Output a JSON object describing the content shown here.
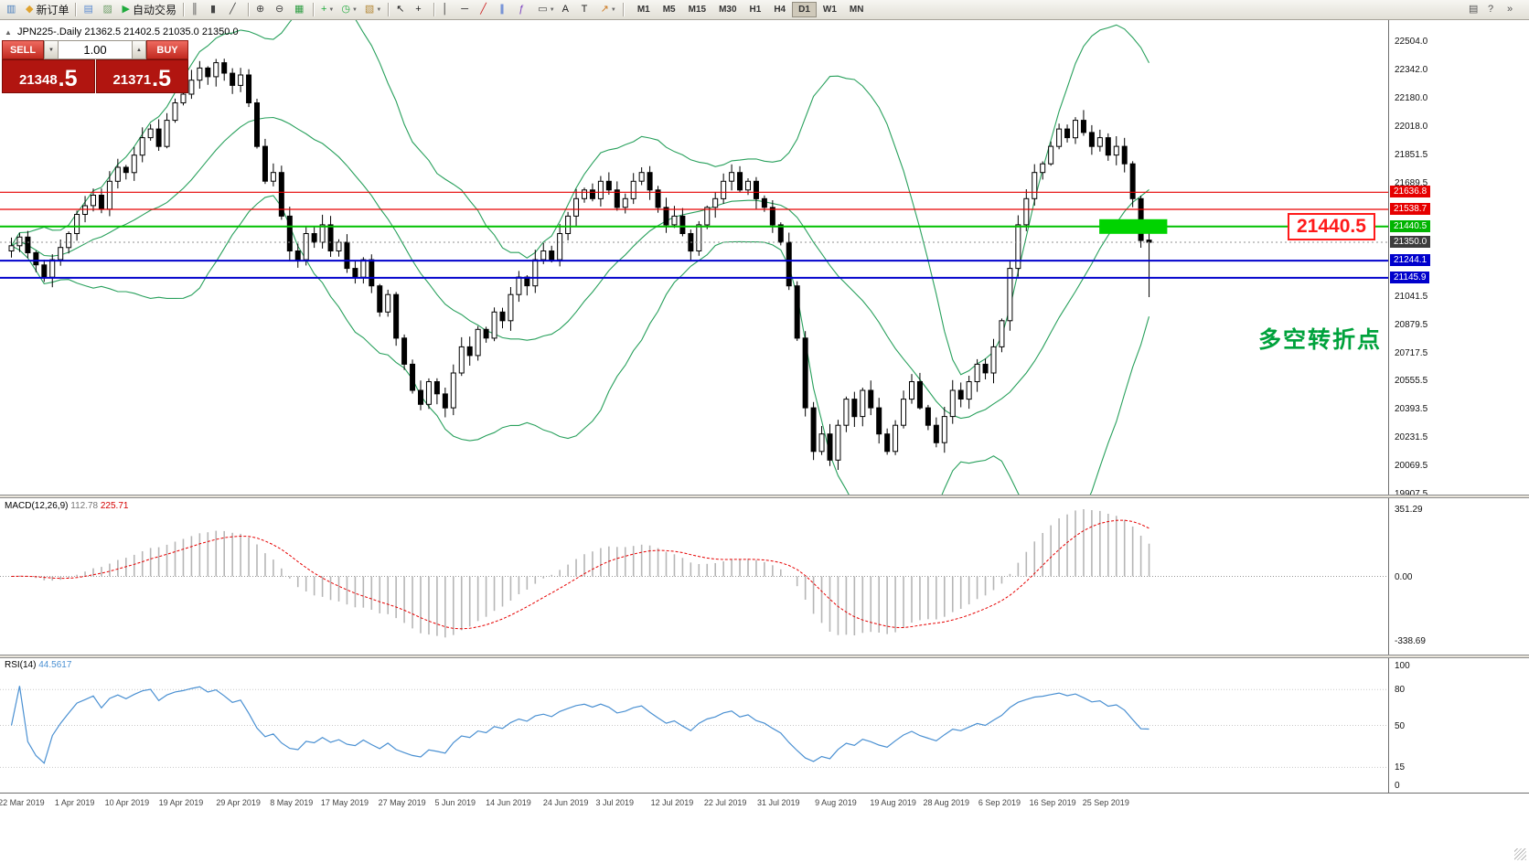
{
  "toolbar": {
    "dropdown_glyph": "▼",
    "items": [
      {
        "type": "btn",
        "name": "chart-icon",
        "glyph": "▥",
        "color": "#4a7ebb"
      },
      {
        "type": "btn",
        "name": "new-order-button",
        "glyph": "◆",
        "color": "#e0a32e",
        "label": "新订单"
      },
      {
        "type": "sep"
      },
      {
        "type": "btn",
        "name": "market-watch-icon",
        "glyph": "▤",
        "color": "#5b8bd0"
      },
      {
        "type": "btn",
        "name": "data-window-icon",
        "glyph": "▨",
        "color": "#6f9f6a"
      },
      {
        "type": "btn",
        "name": "autotrading-button",
        "glyph": "▶",
        "color": "#1faa3c",
        "label": "自动交易"
      },
      {
        "type": "sep"
      },
      {
        "type": "btn",
        "name": "bar-chart-icon",
        "glyph": "║",
        "color": "#444444"
      },
      {
        "type": "btn",
        "name": "candlestick-chart-icon",
        "glyph": "▮",
        "color": "#444444"
      },
      {
        "type": "btn",
        "name": "line-chart-icon",
        "glyph": "╱",
        "color": "#444444"
      },
      {
        "type": "sep"
      },
      {
        "type": "btn",
        "name": "zoom-in-icon",
        "glyph": "⊕",
        "color": "#444444"
      },
      {
        "type": "btn",
        "name": "zoom-out-icon",
        "glyph": "⊖",
        "color": "#444444"
      },
      {
        "type": "btn",
        "name": "tile-windows-icon",
        "glyph": "▦",
        "color": "#2f9e44"
      },
      {
        "type": "sep"
      },
      {
        "type": "btn",
        "name": "indicators-icon",
        "glyph": "+",
        "color": "#1faa3c",
        "dropdown": true
      },
      {
        "type": "btn",
        "name": "periods-icon",
        "glyph": "◷",
        "color": "#1faa3c",
        "dropdown": true
      },
      {
        "type": "btn",
        "name": "templates-icon",
        "glyph": "▧",
        "color": "#b58a3a",
        "dropdown": true
      },
      {
        "type": "sep"
      },
      {
        "type": "btn",
        "name": "cursor-icon",
        "glyph": "↖",
        "color": "#222222"
      },
      {
        "type": "btn",
        "name": "crosshair-icon",
        "glyph": "+",
        "color": "#222222"
      },
      {
        "type": "sep"
      },
      {
        "type": "btn",
        "name": "vertical-line-icon",
        "glyph": "│",
        "color": "#222222"
      },
      {
        "type": "btn",
        "name": "horizontal-line-icon",
        "glyph": "─",
        "color": "#222222"
      },
      {
        "type": "btn",
        "name": "trendline-icon",
        "glyph": "╱",
        "color": "#cc2222"
      },
      {
        "type": "btn",
        "name": "equidistant-channel-icon",
        "glyph": "∥",
        "color": "#2255cc"
      },
      {
        "type": "btn",
        "name": "fibonacci-icon",
        "glyph": "ƒ",
        "color": "#7a3fbf"
      },
      {
        "type": "btn",
        "name": "shapes-icon",
        "glyph": "▭",
        "color": "#444444",
        "dropdown": true
      },
      {
        "type": "btn",
        "name": "text-icon",
        "glyph": "A",
        "color": "#222222"
      },
      {
        "type": "btn",
        "name": "text-label-icon",
        "glyph": "T",
        "color": "#222222"
      },
      {
        "type": "btn",
        "name": "arrows-icon",
        "glyph": "↗",
        "color": "#cc7a22",
        "dropdown": true
      },
      {
        "type": "sep"
      }
    ],
    "timeframes": [
      "M1",
      "M5",
      "M15",
      "M30",
      "H1",
      "H4",
      "D1",
      "W1",
      "MN"
    ],
    "active_timeframe": "D1",
    "right_items": [
      {
        "type": "btn",
        "name": "print-icon",
        "glyph": "▤",
        "color": "#555555"
      },
      {
        "type": "btn",
        "name": "help-icon",
        "glyph": "?",
        "color": "#555555"
      },
      {
        "type": "btn",
        "name": "overflow-icon",
        "glyph": "»",
        "color": "#555555"
      }
    ]
  },
  "chart": {
    "collapse_arrow": "▲",
    "symbol_title": "JPN225-.Daily",
    "ohlc": "21362.5 21402.5 21035.0 21350.0",
    "trade_panel": {
      "sell_label": "SELL",
      "buy_label": "BUY",
      "volume": "1.00",
      "down_glyph": "▼",
      "up_glyph": "▲",
      "sell_price_main": "21348",
      "sell_price_pips": ".5",
      "buy_price_main": "21371",
      "buy_price_pips": ".5"
    },
    "colors": {
      "bollinger": "#28a05c",
      "bull": "#ffffff",
      "bear": "#000000",
      "box_green": "#00d300",
      "rsi": "#4a90d2",
      "macd_hist": "#b6b6b6",
      "macd_signal": "#e60000"
    },
    "levels": [
      {
        "label": "21636.8",
        "value": 21636.8,
        "color": "#e60000",
        "width": 1.2
      },
      {
        "label": "21538.7",
        "value": 21538.7,
        "color": "#e60000",
        "width": 1.2
      },
      {
        "label": "21440.5",
        "value": 21440.5,
        "color": "#00c000",
        "width": 2
      },
      {
        "label": "21244.1",
        "value": 21244.1,
        "color": "#0000cc",
        "width": 2
      },
      {
        "label": "21145.9",
        "value": 21145.9,
        "color": "#0000cc",
        "width": 2
      }
    ],
    "current_price": {
      "label": "21350.0",
      "value": 21350.0
    },
    "price_tags": [
      {
        "label": "21636.8",
        "value": 21636.8,
        "bg": "#e60000"
      },
      {
        "label": "21538.7",
        "value": 21538.7,
        "bg": "#e60000"
      },
      {
        "label": "21440.5",
        "value": 21440.5,
        "bg": "#00b400"
      },
      {
        "label": "21350.0",
        "value": 21350.0,
        "bg": "#3c3c3c"
      },
      {
        "label": "21244.1",
        "value": 21244.1,
        "bg": "#0000cc"
      },
      {
        "label": "21145.9",
        "value": 21145.9,
        "bg": "#0000cc"
      }
    ],
    "price_axis": {
      "ticks": [
        {
          "label": "22504.0",
          "value": 22504.0
        },
        {
          "label": "22342.0",
          "value": 22342.0
        },
        {
          "label": "22180.0",
          "value": 22180.0
        },
        {
          "label": "22018.0",
          "value": 22018.0
        },
        {
          "label": "21851.5",
          "value": 21851.5
        },
        {
          "label": "21689.5",
          "value": 21689.5
        },
        {
          "label": "21041.5",
          "value": 21041.5
        },
        {
          "label": "20879.5",
          "value": 20879.5
        },
        {
          "label": "20717.5",
          "value": 20717.5
        },
        {
          "label": "20555.5",
          "value": 20555.5
        },
        {
          "label": "20393.5",
          "value": 20393.5
        },
        {
          "label": "20231.5",
          "value": 20231.5
        },
        {
          "label": "20069.5",
          "value": 20069.5
        },
        {
          "label": "19907.5",
          "value": 19907.5
        }
      ]
    },
    "green_box": {
      "idx_start": 133.2,
      "idx_end": 141.5,
      "price_top": 21482,
      "price_bottom": 21398
    },
    "callout": {
      "text": "21440.5"
    },
    "note": {
      "text": "多空转折点"
    },
    "date_labels": [
      "22 Mar 2019",
      "1 Apr 2019",
      "10 Apr 2019",
      "19 Apr 2019",
      "29 Apr 2019",
      "8 May 2019",
      "17 May 2019",
      "27 May 2019",
      "5 Jun 2019",
      "14 Jun 2019",
      "24 Jun 2019",
      "3 Jul 2019",
      "12 Jul 2019",
      "22 Jul 2019",
      "31 Jul 2019",
      "9 Aug 2019",
      "19 Aug 2019",
      "28 Aug 2019",
      "6 Sep 2019",
      "16 Sep 2019",
      "25 Sep 2019"
    ]
  },
  "macd": {
    "name": "MACD(12,26,9)",
    "main_value": "112.78",
    "signal_value": "225.71",
    "axis": [
      {
        "label": "351.29",
        "value": 351.29
      },
      {
        "label": "0.00",
        "value": 0
      },
      {
        "label": "-338.69",
        "value": -338.69
      }
    ]
  },
  "rsi": {
    "name": "RSI(14)",
    "value": "44.5617",
    "axis": [
      {
        "label": "100",
        "value": 100
      },
      {
        "label": "80",
        "value": 80
      },
      {
        "label": "50",
        "value": 50
      },
      {
        "label": "15",
        "value": 15
      },
      {
        "label": "0",
        "value": 0
      }
    ],
    "levels": [
      80,
      50,
      15
    ]
  },
  "chart_data": {
    "type": "candlestick",
    "symbol": "JPN225-",
    "timeframe": "Daily",
    "title": "JPN225-.Daily 21362.5 21402.5 21035.0 21350.0",
    "current_bar": {
      "open": 21362.5,
      "high": 21402.5,
      "low": 21035.0,
      "close": 21350.0
    },
    "price_range": [
      19907.5,
      22504.0
    ],
    "x_range": [
      "22 Mar 2019",
      "30 Sep 2019"
    ],
    "overlays": [
      {
        "type": "bollinger_bands",
        "period": 20,
        "deviation": 2
      }
    ],
    "indicators": [
      {
        "type": "macd",
        "fast": 12,
        "slow": 26,
        "signal": 9,
        "main": 112.78,
        "signal_value": 225.71,
        "axis_range": [
          -338.69,
          351.29
        ]
      },
      {
        "type": "rsi",
        "period": 14,
        "value": 44.5617,
        "axis_range": [
          0,
          100
        ]
      }
    ],
    "horizontal_levels": [
      21636.8,
      21538.7,
      21440.5,
      21244.1,
      21145.9
    ],
    "date_tick_indices": [
      1.5,
      8,
      14.4,
      21,
      28,
      34.5,
      41,
      48,
      54.5,
      61,
      68,
      74,
      81,
      87.5,
      94,
      101,
      108,
      114.5,
      121,
      127.5,
      134
    ],
    "closes": [
      21330,
      21380,
      21290,
      21220,
      21150,
      21250,
      21320,
      21400,
      21510,
      21560,
      21620,
      21540,
      21700,
      21780,
      21750,
      21850,
      21950,
      22000,
      21900,
      22050,
      22150,
      22200,
      22280,
      22350,
      22300,
      22380,
      22320,
      22250,
      22310,
      22150,
      21900,
      21700,
      21750,
      21500,
      21300,
      21250,
      21400,
      21350,
      21450,
      21300,
      21350,
      21200,
      21150,
      21250,
      21100,
      20950,
      21050,
      20800,
      20650,
      20500,
      20420,
      20550,
      20480,
      20400,
      20600,
      20750,
      20700,
      20850,
      20800,
      20950,
      20900,
      21050,
      21150,
      21100,
      21250,
      21300,
      21250,
      21400,
      21500,
      21600,
      21650,
      21600,
      21700,
      21650,
      21550,
      21600,
      21700,
      21750,
      21650,
      21550,
      21450,
      21500,
      21400,
      21300,
      21450,
      21550,
      21600,
      21700,
      21750,
      21650,
      21700,
      21600,
      21550,
      21450,
      21350,
      21100,
      20800,
      20400,
      20150,
      20250,
      20100,
      20300,
      20450,
      20350,
      20500,
      20400,
      20250,
      20150,
      20300,
      20450,
      20550,
      20400,
      20300,
      20200,
      20350,
      20500,
      20450,
      20550,
      20650,
      20600,
      20750,
      20900,
      21200,
      21450,
      21600,
      21750,
      21800,
      21900,
      22000,
      21950,
      22050,
      21980,
      21900,
      21950,
      21850,
      21900,
      21800,
      21600,
      21360,
      21350
    ]
  }
}
